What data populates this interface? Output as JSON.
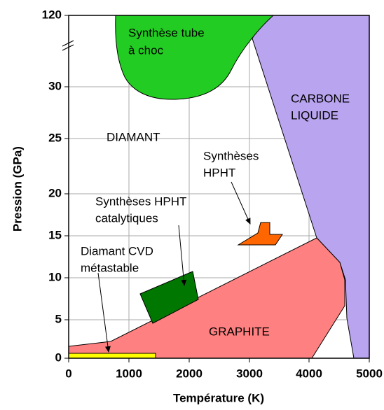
{
  "axes": {
    "x_label": "Température (K)",
    "y_label": "Pression (GPa)",
    "x_ticks": [
      "0",
      "1000",
      "2000",
      "3000",
      "4000",
      "5000"
    ],
    "y_ticks": [
      "0",
      "5",
      "10",
      "15",
      "20",
      "25",
      "30",
      "120"
    ]
  },
  "regions": {
    "shock_tube": [
      "Synthèse tube",
      "à choc"
    ],
    "liquid": [
      "CARBONE",
      "LIQUIDE"
    ],
    "diamond": "DIAMANT",
    "hpht": [
      "Synthèses",
      "HPHT"
    ],
    "catalytic": [
      "Synthèses HPHT",
      "catalytiques"
    ],
    "cvd": [
      "Diamant CVD",
      "métastable"
    ],
    "graphite": "GRAPHITE"
  }
}
